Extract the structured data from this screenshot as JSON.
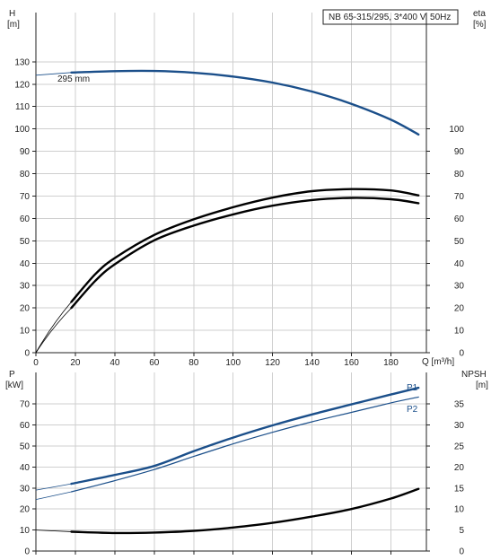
{
  "chart_data": [
    {
      "type": "line",
      "title": "NB 65-315/295, 3*400 V, 50Hz",
      "annotation": "295 mm",
      "x_axis": {
        "label": "Q [m³/h]",
        "range": [
          0,
          198
        ],
        "ticks": [
          0,
          20,
          40,
          60,
          80,
          100,
          120,
          140,
          160,
          180
        ]
      },
      "y_left": {
        "label_1": "H",
        "label_2": "[m]",
        "range": [
          0,
          152
        ],
        "ticks": [
          0,
          10,
          20,
          30,
          40,
          50,
          60,
          70,
          80,
          90,
          100,
          110,
          120,
          130
        ]
      },
      "y_right": {
        "label_1": "eta",
        "label_2": "[%]",
        "range": [
          0,
          152
        ],
        "ticks": [
          0,
          10,
          20,
          30,
          40,
          50,
          60,
          70,
          80,
          90,
          100
        ]
      },
      "grid": true,
      "series": [
        {
          "name": "H",
          "axis": "left",
          "color": "#1b4f8a",
          "x": [
            18,
            40,
            60,
            80,
            100,
            120,
            140,
            160,
            180,
            194
          ],
          "y": [
            125.2,
            125.8,
            125.9,
            125.1,
            123.4,
            120.7,
            116.7,
            111.2,
            104.1,
            97.5
          ]
        },
        {
          "axis": "right",
          "color": "#000000",
          "x": [
            18,
            30,
            40,
            60,
            80,
            100,
            120,
            140,
            160,
            180,
            194
          ],
          "y": [
            22.7,
            35.0,
            42.3,
            52.6,
            59.6,
            65.0,
            69.3,
            72.2,
            73.1,
            72.5,
            70.3
          ]
        },
        {
          "axis": "left",
          "color": "#000000",
          "x": [
            18,
            30,
            40,
            60,
            80,
            100,
            120,
            140,
            160,
            180,
            194
          ],
          "y": [
            20.0,
            32.0,
            39.5,
            50.2,
            56.8,
            61.8,
            65.7,
            68.2,
            69.2,
            68.6,
            66.8
          ]
        }
      ]
    },
    {
      "type": "line",
      "x_axis": {
        "range": [
          0,
          198
        ]
      },
      "y_left": {
        "label_1": "P",
        "label_2": "[kW]",
        "range": [
          0,
          85
        ],
        "ticks": [
          0,
          10,
          20,
          30,
          40,
          50,
          60,
          70
        ]
      },
      "y_right": {
        "label_1": "NPSH",
        "label_2": "[m]",
        "range": [
          0,
          42.5
        ],
        "ticks": [
          0,
          5,
          10,
          15,
          20,
          25,
          30,
          35
        ]
      },
      "grid": true,
      "series": [
        {
          "name": "P1",
          "axis": "left",
          "color": "#1b4f8a",
          "x": [
            18,
            40,
            60,
            80,
            100,
            120,
            140,
            160,
            180,
            194
          ],
          "y": [
            32.0,
            36.2,
            40.5,
            47.5,
            54.0,
            59.8,
            65.0,
            69.8,
            74.5,
            77.7
          ]
        },
        {
          "name": "P2",
          "axis": "left",
          "color": "#1b4f8a",
          "x": [
            18,
            40,
            60,
            80,
            100,
            120,
            140,
            160,
            180,
            194
          ],
          "y": [
            28.2,
            33.5,
            38.8,
            45.0,
            51.0,
            56.5,
            61.5,
            66.0,
            70.5,
            73.3
          ]
        },
        {
          "axis": "right",
          "color": "#000000",
          "x": [
            18,
            40,
            60,
            80,
            100,
            120,
            140,
            160,
            180,
            194
          ],
          "y": [
            4.6,
            4.3,
            4.4,
            4.8,
            5.6,
            6.7,
            8.2,
            10.0,
            12.5,
            14.8
          ]
        }
      ]
    }
  ]
}
